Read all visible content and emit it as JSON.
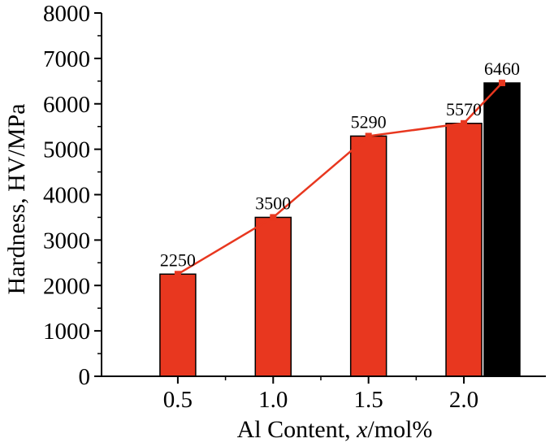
{
  "chart_data": {
    "type": "bar",
    "title": "",
    "xlabel": {
      "prefix": "Al Content, ",
      "italic": "x",
      "suffix": "/mol%"
    },
    "ylabel": "Hardness, HV/MPa",
    "ylim": [
      0,
      8000
    ],
    "yticks": [
      "0",
      "1000",
      "2000",
      "3000",
      "4000",
      "5000",
      "6000",
      "7000",
      "8000"
    ],
    "xticks": [
      "0.5",
      "1.0",
      "1.5",
      "2.0"
    ],
    "grid": false,
    "bars": [
      {
        "x": 0.5,
        "value": 2250,
        "label": "2250",
        "color": "#e8371f"
      },
      {
        "x": 1.0,
        "value": 3500,
        "label": "3500",
        "color": "#e8371f"
      },
      {
        "x": 1.5,
        "value": 5290,
        "label": "5290",
        "color": "#e8371f"
      },
      {
        "x": 2.0,
        "value": 5570,
        "label": "5570",
        "color": "#e8371f"
      },
      {
        "x": 2.2,
        "value": 6460,
        "label": "6460",
        "color": "#000000"
      }
    ],
    "line_series": {
      "values": [
        2250,
        3500,
        5290,
        5570,
        6460
      ],
      "color": "#e8371f"
    }
  }
}
